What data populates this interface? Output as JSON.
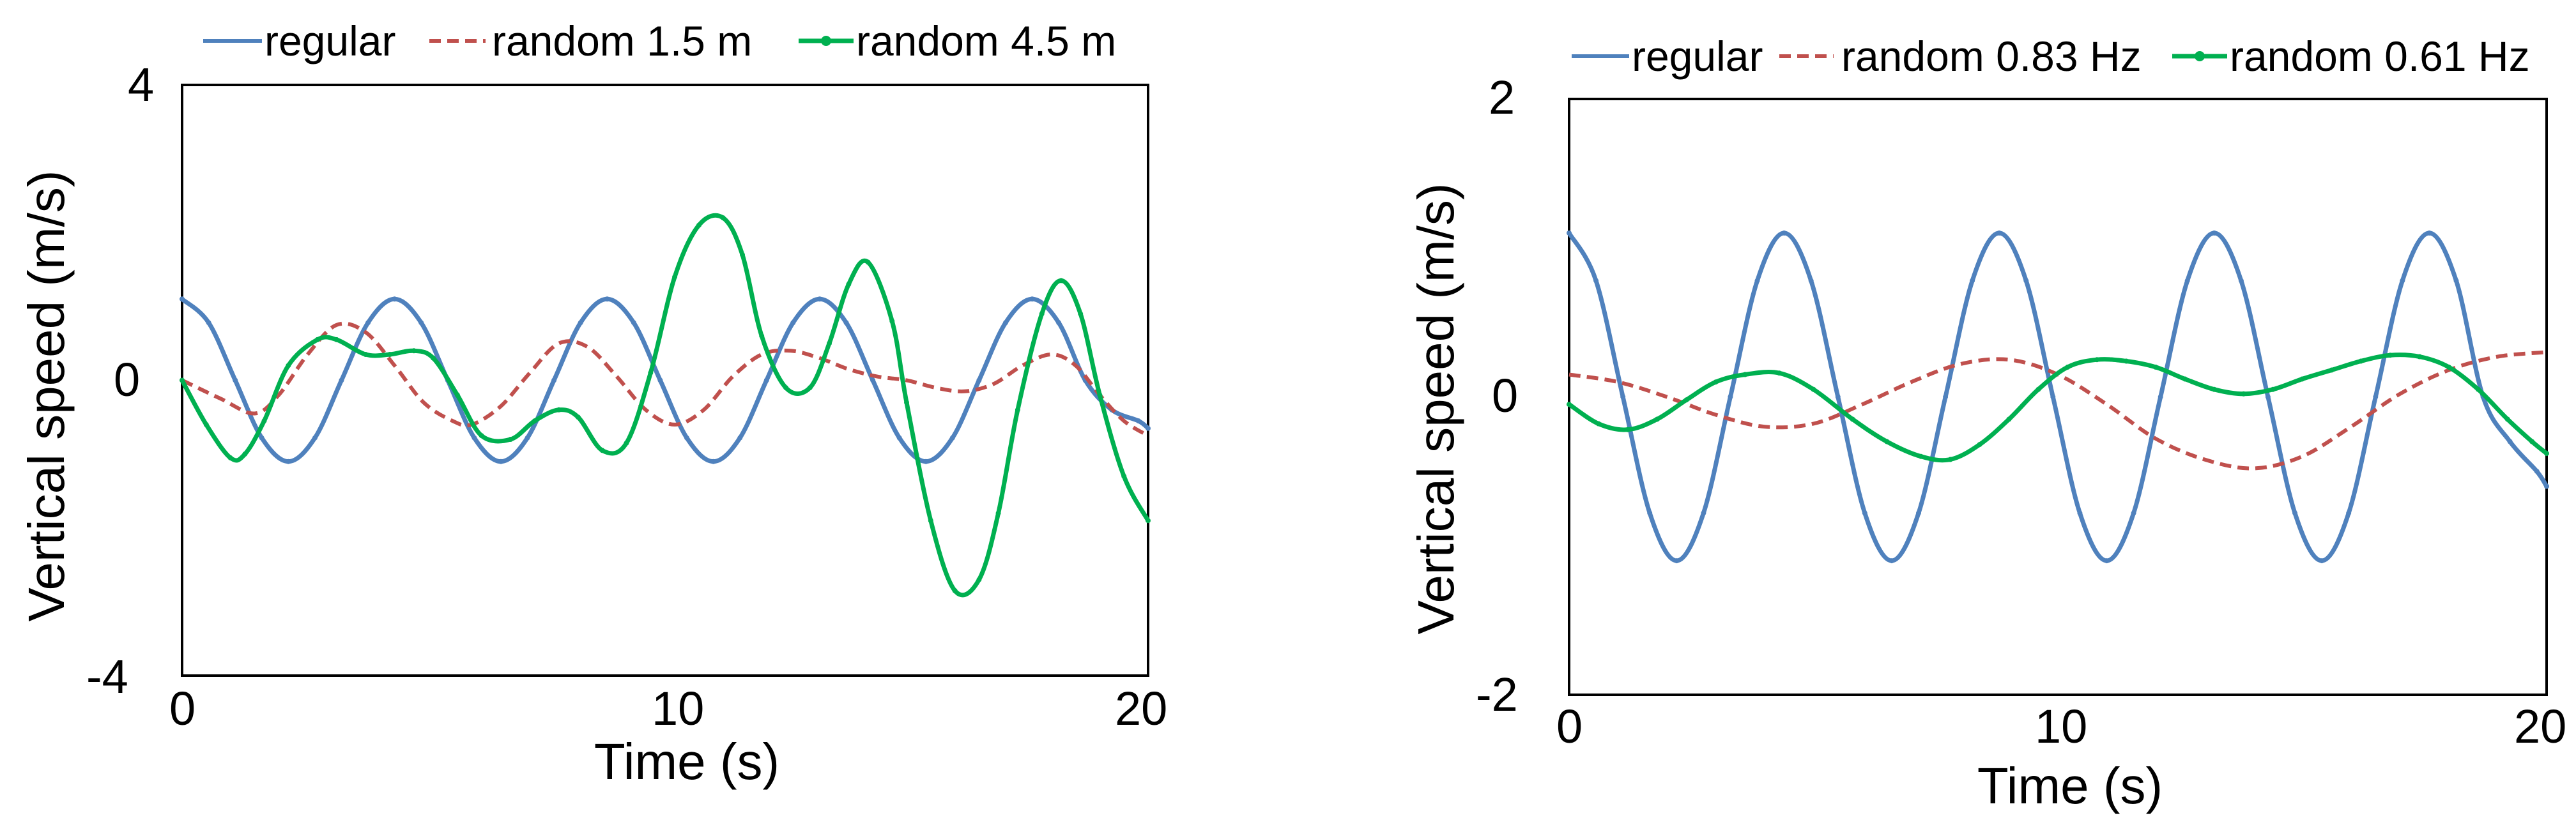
{
  "chart_data": [
    {
      "type": "line",
      "title": "",
      "xlabel": "Time (s)",
      "ylabel": "Vertical speed (m/s)",
      "xlim": [
        0,
        20
      ],
      "ylim": [
        -4,
        4
      ],
      "xticks": [
        "0",
        "10",
        "20"
      ],
      "yticks": [
        "4",
        "0",
        "-4"
      ],
      "grid": false,
      "legend_position": "top",
      "series": [
        {
          "name": "regular",
          "color": "#4F81BD",
          "style": "solid-markers",
          "x": [
            0,
            0.55,
            1.1,
            1.65,
            2.2,
            2.75,
            3.3,
            3.85,
            4.4,
            4.95,
            5.5,
            6.05,
            6.6,
            7.15,
            7.7,
            8.25,
            8.8,
            9.35,
            9.9,
            10.45,
            11,
            11.55,
            12.1,
            12.65,
            13.2,
            13.75,
            14.3,
            14.85,
            15.4,
            15.95,
            16.5,
            17.05,
            17.6,
            18.15,
            18.7,
            19.25,
            19.8,
            20
          ],
          "y": [
            1.1,
            0.78,
            0,
            -0.78,
            -1.1,
            -0.78,
            0,
            0.78,
            1.1,
            0.78,
            0,
            -0.78,
            -1.1,
            -0.78,
            0,
            0.78,
            1.1,
            0.78,
            0,
            -0.78,
            -1.1,
            -0.78,
            0,
            0.78,
            1.1,
            0.78,
            0,
            -0.78,
            -1.1,
            -0.78,
            0,
            0.78,
            1.1,
            0.78,
            0,
            -0.4,
            -0.55,
            -0.65
          ]
        },
        {
          "name": "random 1.5 m",
          "color": "#C0504D",
          "style": "dashed",
          "x": [
            0,
            0.8,
            1.5,
            2,
            2.6,
            3.2,
            3.8,
            4.4,
            5,
            5.6,
            6,
            6.6,
            7.2,
            7.8,
            8.4,
            9,
            9.6,
            10.2,
            10.8,
            11.4,
            12,
            12.6,
            13.2,
            13.8,
            14.4,
            15,
            15.6,
            16.2,
            16.8,
            17.4,
            18,
            18.5,
            19,
            19.5,
            20
          ],
          "y": [
            0,
            -0.25,
            -0.45,
            -0.2,
            0.35,
            0.75,
            0.65,
            0.2,
            -0.3,
            -0.55,
            -0.6,
            -0.35,
            0.1,
            0.5,
            0.45,
            0.05,
            -0.4,
            -0.6,
            -0.4,
            0.05,
            0.35,
            0.4,
            0.3,
            0.15,
            0.05,
            0,
            -0.1,
            -0.15,
            -0.05,
            0.2,
            0.35,
            0.2,
            -0.2,
            -0.55,
            -0.75
          ]
        },
        {
          "name": "random 4.5 m",
          "color": "#00B050",
          "style": "solid-markers",
          "x": [
            0,
            0.5,
            1,
            1.3,
            1.7,
            2.2,
            2.8,
            3.2,
            3.8,
            4.3,
            4.8,
            5.2,
            5.7,
            6.2,
            6.8,
            7.3,
            7.8,
            8.2,
            8.7,
            9.2,
            9.7,
            10.2,
            10.7,
            11.2,
            11.6,
            12,
            12.5,
            13,
            13.4,
            13.8,
            14.2,
            14.7,
            15,
            15.5,
            16,
            16.5,
            16.9,
            17.3,
            17.8,
            18.2,
            18.6,
            19,
            19.5,
            20
          ],
          "y": [
            0,
            -0.6,
            -1.05,
            -1,
            -0.55,
            0.2,
            0.55,
            0.55,
            0.35,
            0.35,
            0.4,
            0.3,
            -0.2,
            -0.75,
            -0.8,
            -0.55,
            -0.4,
            -0.5,
            -0.95,
            -0.85,
            0.1,
            1.4,
            2.1,
            2.2,
            1.7,
            0.6,
            -0.1,
            -0.1,
            0.5,
            1.3,
            1.6,
            0.8,
            -0.3,
            -1.9,
            -2.85,
            -2.7,
            -1.8,
            -0.4,
            0.9,
            1.35,
            0.9,
            -0.2,
            -1.3,
            -1.9
          ]
        }
      ]
    },
    {
      "type": "line",
      "title": "",
      "xlabel": "Time (s)",
      "ylabel": "Vertical speed (m/s)",
      "xlim": [
        0,
        20
      ],
      "ylim": [
        -2,
        2
      ],
      "xticks": [
        "0",
        "10",
        "20"
      ],
      "yticks": [
        "2",
        "0",
        "-2"
      ],
      "grid": false,
      "legend_position": "top",
      "series": [
        {
          "name": "regular",
          "color": "#4F81BD",
          "style": "solid-markers",
          "x": [
            0,
            0.55,
            1.1,
            1.65,
            2.2,
            2.75,
            3.3,
            3.85,
            4.4,
            4.95,
            5.5,
            6.05,
            6.6,
            7.15,
            7.7,
            8.25,
            8.8,
            9.35,
            9.9,
            10.45,
            11,
            11.55,
            12.1,
            12.65,
            13.2,
            13.75,
            14.3,
            14.85,
            15.4,
            15.95,
            16.5,
            17.05,
            17.6,
            18.15,
            18.7,
            19.25,
            19.8,
            20
          ],
          "y": [
            1.1,
            0.78,
            0,
            -0.78,
            -1.1,
            -0.78,
            0,
            0.78,
            1.1,
            0.78,
            0,
            -0.78,
            -1.1,
            -0.78,
            0,
            0.78,
            1.1,
            0.78,
            0,
            -0.78,
            -1.1,
            -0.78,
            0,
            0.78,
            1.1,
            0.78,
            0,
            -0.78,
            -1.1,
            -0.78,
            0,
            0.78,
            1.1,
            0.78,
            0,
            -0.3,
            -0.5,
            -0.6
          ]
        },
        {
          "name": "random 0.83 Hz",
          "color": "#C0504D",
          "style": "dashed",
          "x": [
            0,
            1,
            2,
            3,
            4,
            5,
            6,
            7,
            8,
            9,
            10,
            11,
            12,
            13,
            14,
            15,
            16,
            17,
            18,
            19,
            20
          ],
          "y": [
            0.15,
            0.1,
            0,
            -0.12,
            -0.2,
            -0.18,
            -0.05,
            0.1,
            0.22,
            0.25,
            0.15,
            -0.05,
            -0.28,
            -0.42,
            -0.48,
            -0.4,
            -0.2,
            0.02,
            0.18,
            0.27,
            0.3
          ]
        },
        {
          "name": "random 0.61 Hz",
          "color": "#00B050",
          "style": "solid-markers",
          "x": [
            0,
            0.6,
            1.2,
            1.8,
            2.4,
            3,
            3.6,
            4.3,
            5,
            5.8,
            6.5,
            7.2,
            7.8,
            8.4,
            9,
            9.6,
            10.2,
            10.8,
            11.4,
            12,
            12.6,
            13.2,
            13.8,
            14.4,
            15,
            15.6,
            16.2,
            16.8,
            17.4,
            18,
            18.6,
            19.2,
            19.7,
            20
          ],
          "y": [
            -0.05,
            -0.18,
            -0.22,
            -0.15,
            -0.02,
            0.1,
            0.15,
            0.16,
            0.05,
            -0.15,
            -0.3,
            -0.4,
            -0.42,
            -0.32,
            -0.15,
            0.05,
            0.2,
            0.25,
            0.24,
            0.2,
            0.12,
            0.05,
            0.02,
            0.05,
            0.12,
            0.18,
            0.24,
            0.28,
            0.27,
            0.2,
            0.05,
            -0.15,
            -0.3,
            -0.38
          ]
        }
      ]
    }
  ]
}
